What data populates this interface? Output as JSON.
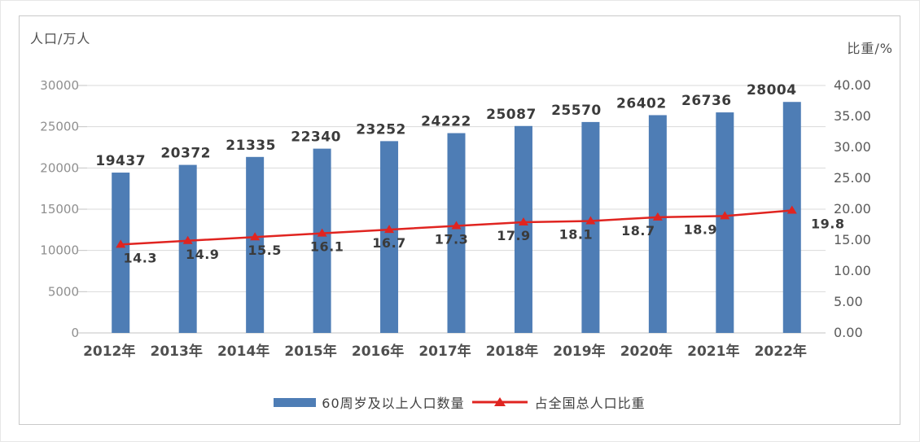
{
  "axis_titles": {
    "left": "人口/万人",
    "right": "比重/%"
  },
  "legend": {
    "bar_label": "60周岁及以上人口数量",
    "line_label": "占全国总人口比重"
  },
  "colors": {
    "bar": "#4E7DB5",
    "line": "#E02420",
    "grid": "#D9D9D9",
    "axis_line": "#C3C3C3"
  },
  "chart_data": {
    "type": "bar",
    "title": "",
    "categories": [
      "2012年",
      "2013年",
      "2014年",
      "2015年",
      "2016年",
      "2017年",
      "2018年",
      "2019年",
      "2020年",
      "2021年",
      "2022年"
    ],
    "series": [
      {
        "name": "60周岁及以上人口数量",
        "type": "bar",
        "axis": "left",
        "color": "#4E7DB5",
        "values": [
          19437,
          20372,
          21335,
          22340,
          23252,
          24222,
          25087,
          25570,
          26402,
          26736,
          28004
        ]
      },
      {
        "name": "占全国总人口比重",
        "type": "line",
        "axis": "right",
        "color": "#E02420",
        "marker": "triangle",
        "values": [
          14.3,
          14.9,
          15.5,
          16.1,
          16.7,
          17.3,
          17.9,
          18.1,
          18.7,
          18.9,
          19.8
        ]
      }
    ],
    "left_axis": {
      "title": "人口/万人",
      "min": 0,
      "max": 30000,
      "step": 5000,
      "ticks": [
        "30000",
        "25000",
        "20000",
        "15000",
        "10000",
        "5000",
        "0"
      ]
    },
    "right_axis": {
      "title": "比重/%",
      "min": 0,
      "max": 40,
      "step": 5,
      "ticks": [
        "40.00",
        "35.00",
        "30.00",
        "25.00",
        "20.00",
        "15.00",
        "10.00",
        "5.00",
        "0.00"
      ]
    },
    "grid": true,
    "legend_position": "bottom"
  }
}
